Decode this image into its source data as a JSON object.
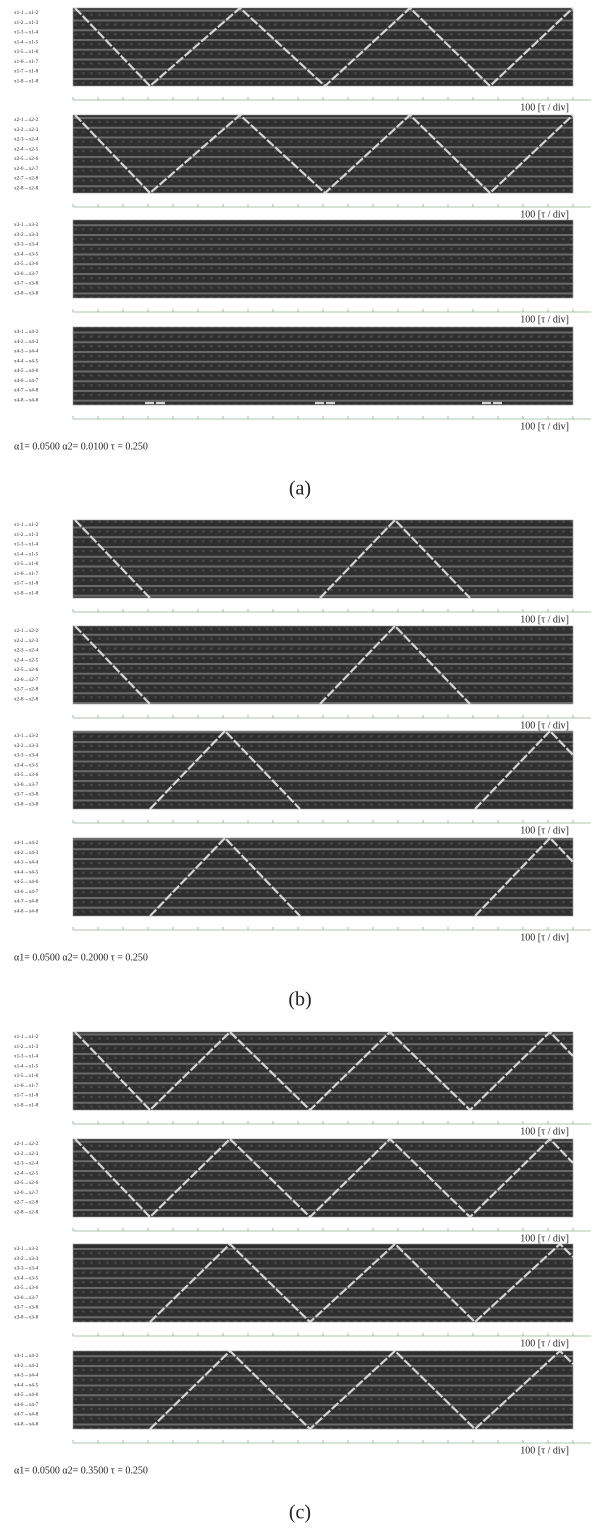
{
  "row_labels": [
    [
      "x1-1→x1-2",
      "x1-2→x1-3",
      "x1-3→x1-4",
      "x1-4→x1-5",
      "x1-5→x1-6",
      "x1-6→x1-7",
      "x1-7→x1-8",
      "x1-8→x1-8"
    ],
    [
      "x2-1→x2-2",
      "x2-2→x2-3",
      "x2-3→x2-4",
      "x2-4→x2-5",
      "x2-5→x2-6",
      "x2-6→x2-7",
      "x2-7→x2-8",
      "x2-8→x2-8"
    ],
    [
      "x3-1→x3-2",
      "x3-2→x3-3",
      "x3-3→x3-4",
      "x3-4→x3-5",
      "x3-5→x3-6",
      "x3-6→x3-7",
      "x3-7→x3-8",
      "x3-8→x3-8"
    ],
    [
      "x4-1→x4-2",
      "x4-2→x4-3",
      "x4-3→x4-4",
      "x4-4→x4-5",
      "x4-5→x4-6",
      "x4-6→x4-7",
      "x4-7→x4-8",
      "x4-8→x4-8"
    ]
  ],
  "axis_label": "100 [τ / div]",
  "panels": [
    {
      "params": "α1= 0.0500  α2= 0.0100  τ = 0.250",
      "caption": "(a)"
    },
    {
      "params": "α1= 0.0500  α2= 0.2000  τ = 0.250",
      "caption": "(b)"
    },
    {
      "params": "α1= 0.0500  α2= 0.3500  τ = 0.250",
      "caption": "(c)"
    }
  ]
}
